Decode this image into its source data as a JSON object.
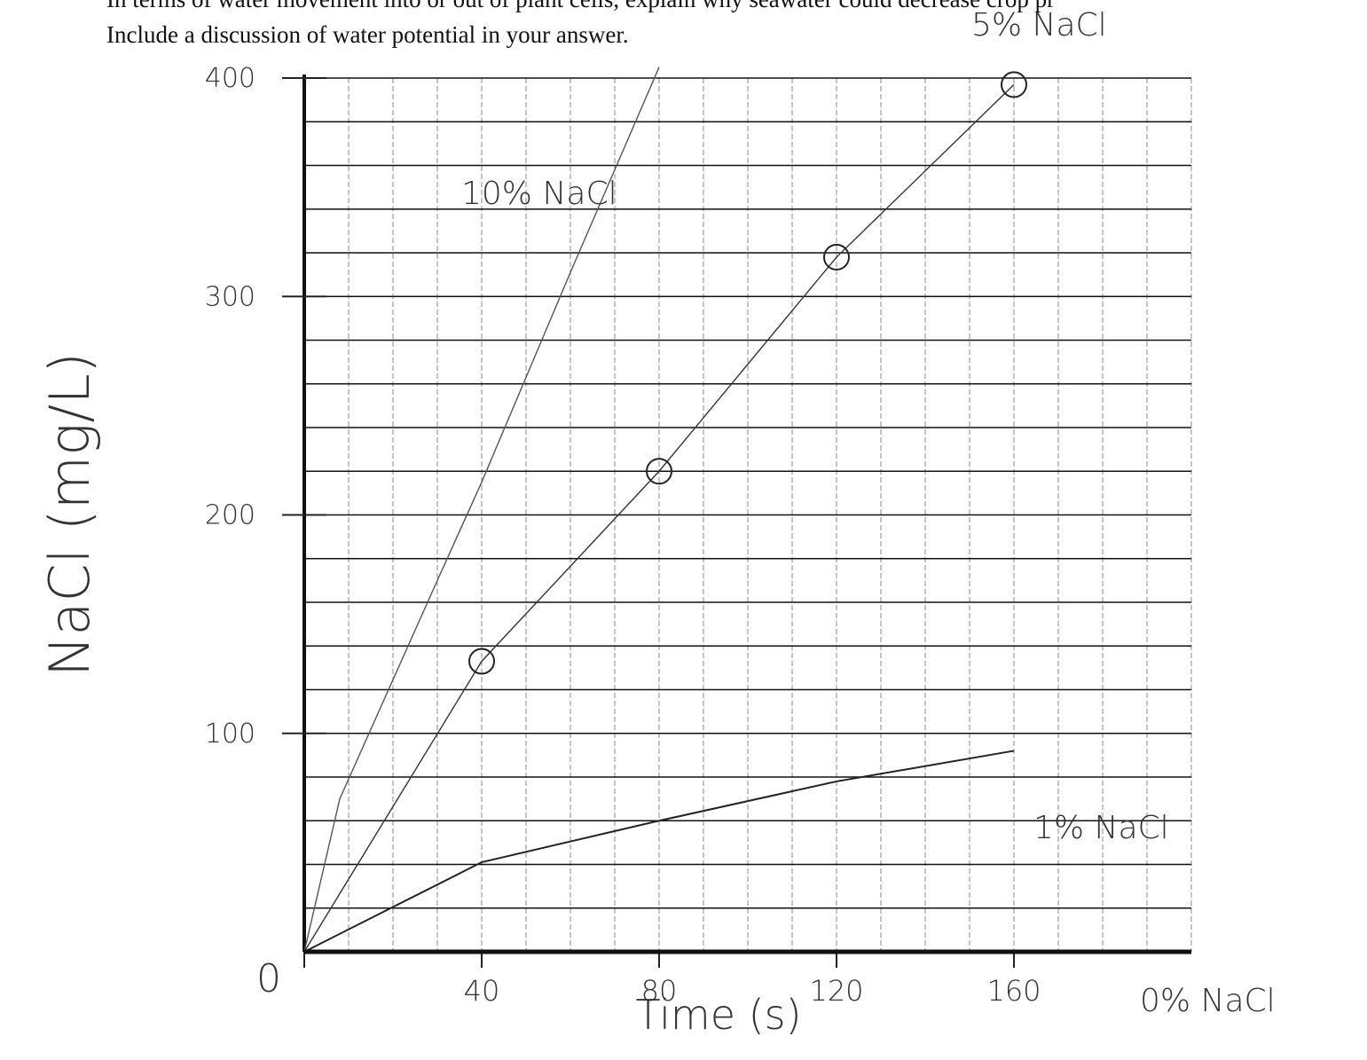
{
  "header": {
    "lines": [
      "In terms of water movement into or out of plant cells, explain why seawater could decrease crop pr",
      "Include a discussion of water potential in your answer."
    ]
  },
  "chart_data": {
    "type": "line",
    "xlabel": "Time (s)",
    "ylabel": "NaCl (mg/L)",
    "xlim": [
      0,
      200
    ],
    "ylim": [
      0,
      400
    ],
    "xticks": [
      0,
      40,
      80,
      120,
      160
    ],
    "yticks": [
      100,
      200,
      300,
      400
    ],
    "x_gridlines": [
      10,
      20,
      30,
      40,
      50,
      60,
      70,
      80,
      90,
      100,
      110,
      120,
      130,
      140,
      150,
      160,
      170,
      180,
      190,
      200
    ],
    "y_gridlines": [
      20,
      40,
      60,
      80,
      100,
      120,
      140,
      160,
      180,
      200,
      220,
      240,
      260,
      280,
      300,
      320,
      340,
      360,
      380,
      400
    ],
    "series": [
      {
        "name": "10% NaCl",
        "color": "#555555",
        "x": [
          0,
          8,
          30,
          40,
          60,
          80
        ],
        "values": [
          0,
          70,
          170,
          215,
          311,
          405
        ]
      },
      {
        "name": "5% NaCl",
        "color": "#333333",
        "x": [
          0,
          40,
          80,
          120,
          160
        ],
        "values": [
          0,
          133,
          220,
          318,
          397
        ],
        "markers": true
      },
      {
        "name": "1% NaCl",
        "color": "#222222",
        "x": [
          0,
          40,
          80,
          120,
          160
        ],
        "values": [
          0,
          41,
          60,
          78,
          92
        ]
      },
      {
        "name": "0% NaCl",
        "color": "#111111",
        "x": [
          0,
          200
        ],
        "values": [
          0,
          0
        ]
      }
    ]
  }
}
